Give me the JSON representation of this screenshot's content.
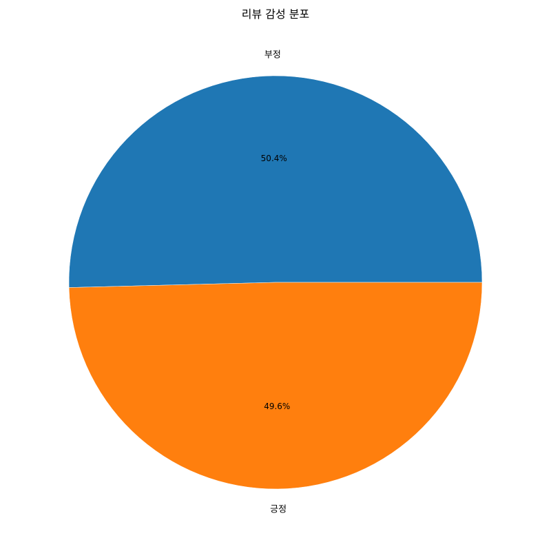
{
  "chart_data": {
    "type": "pie",
    "title": "리뷰 감성 분포",
    "categories": [
      "부정",
      "긍정"
    ],
    "values": [
      50.4,
      49.6
    ],
    "value_labels": [
      "50.4%",
      "49.6%"
    ],
    "colors": [
      "#1f77b4",
      "#ff7f0e"
    ],
    "start_angle_deg": 0,
    "direction": "counterclockwise",
    "legend": "none"
  }
}
